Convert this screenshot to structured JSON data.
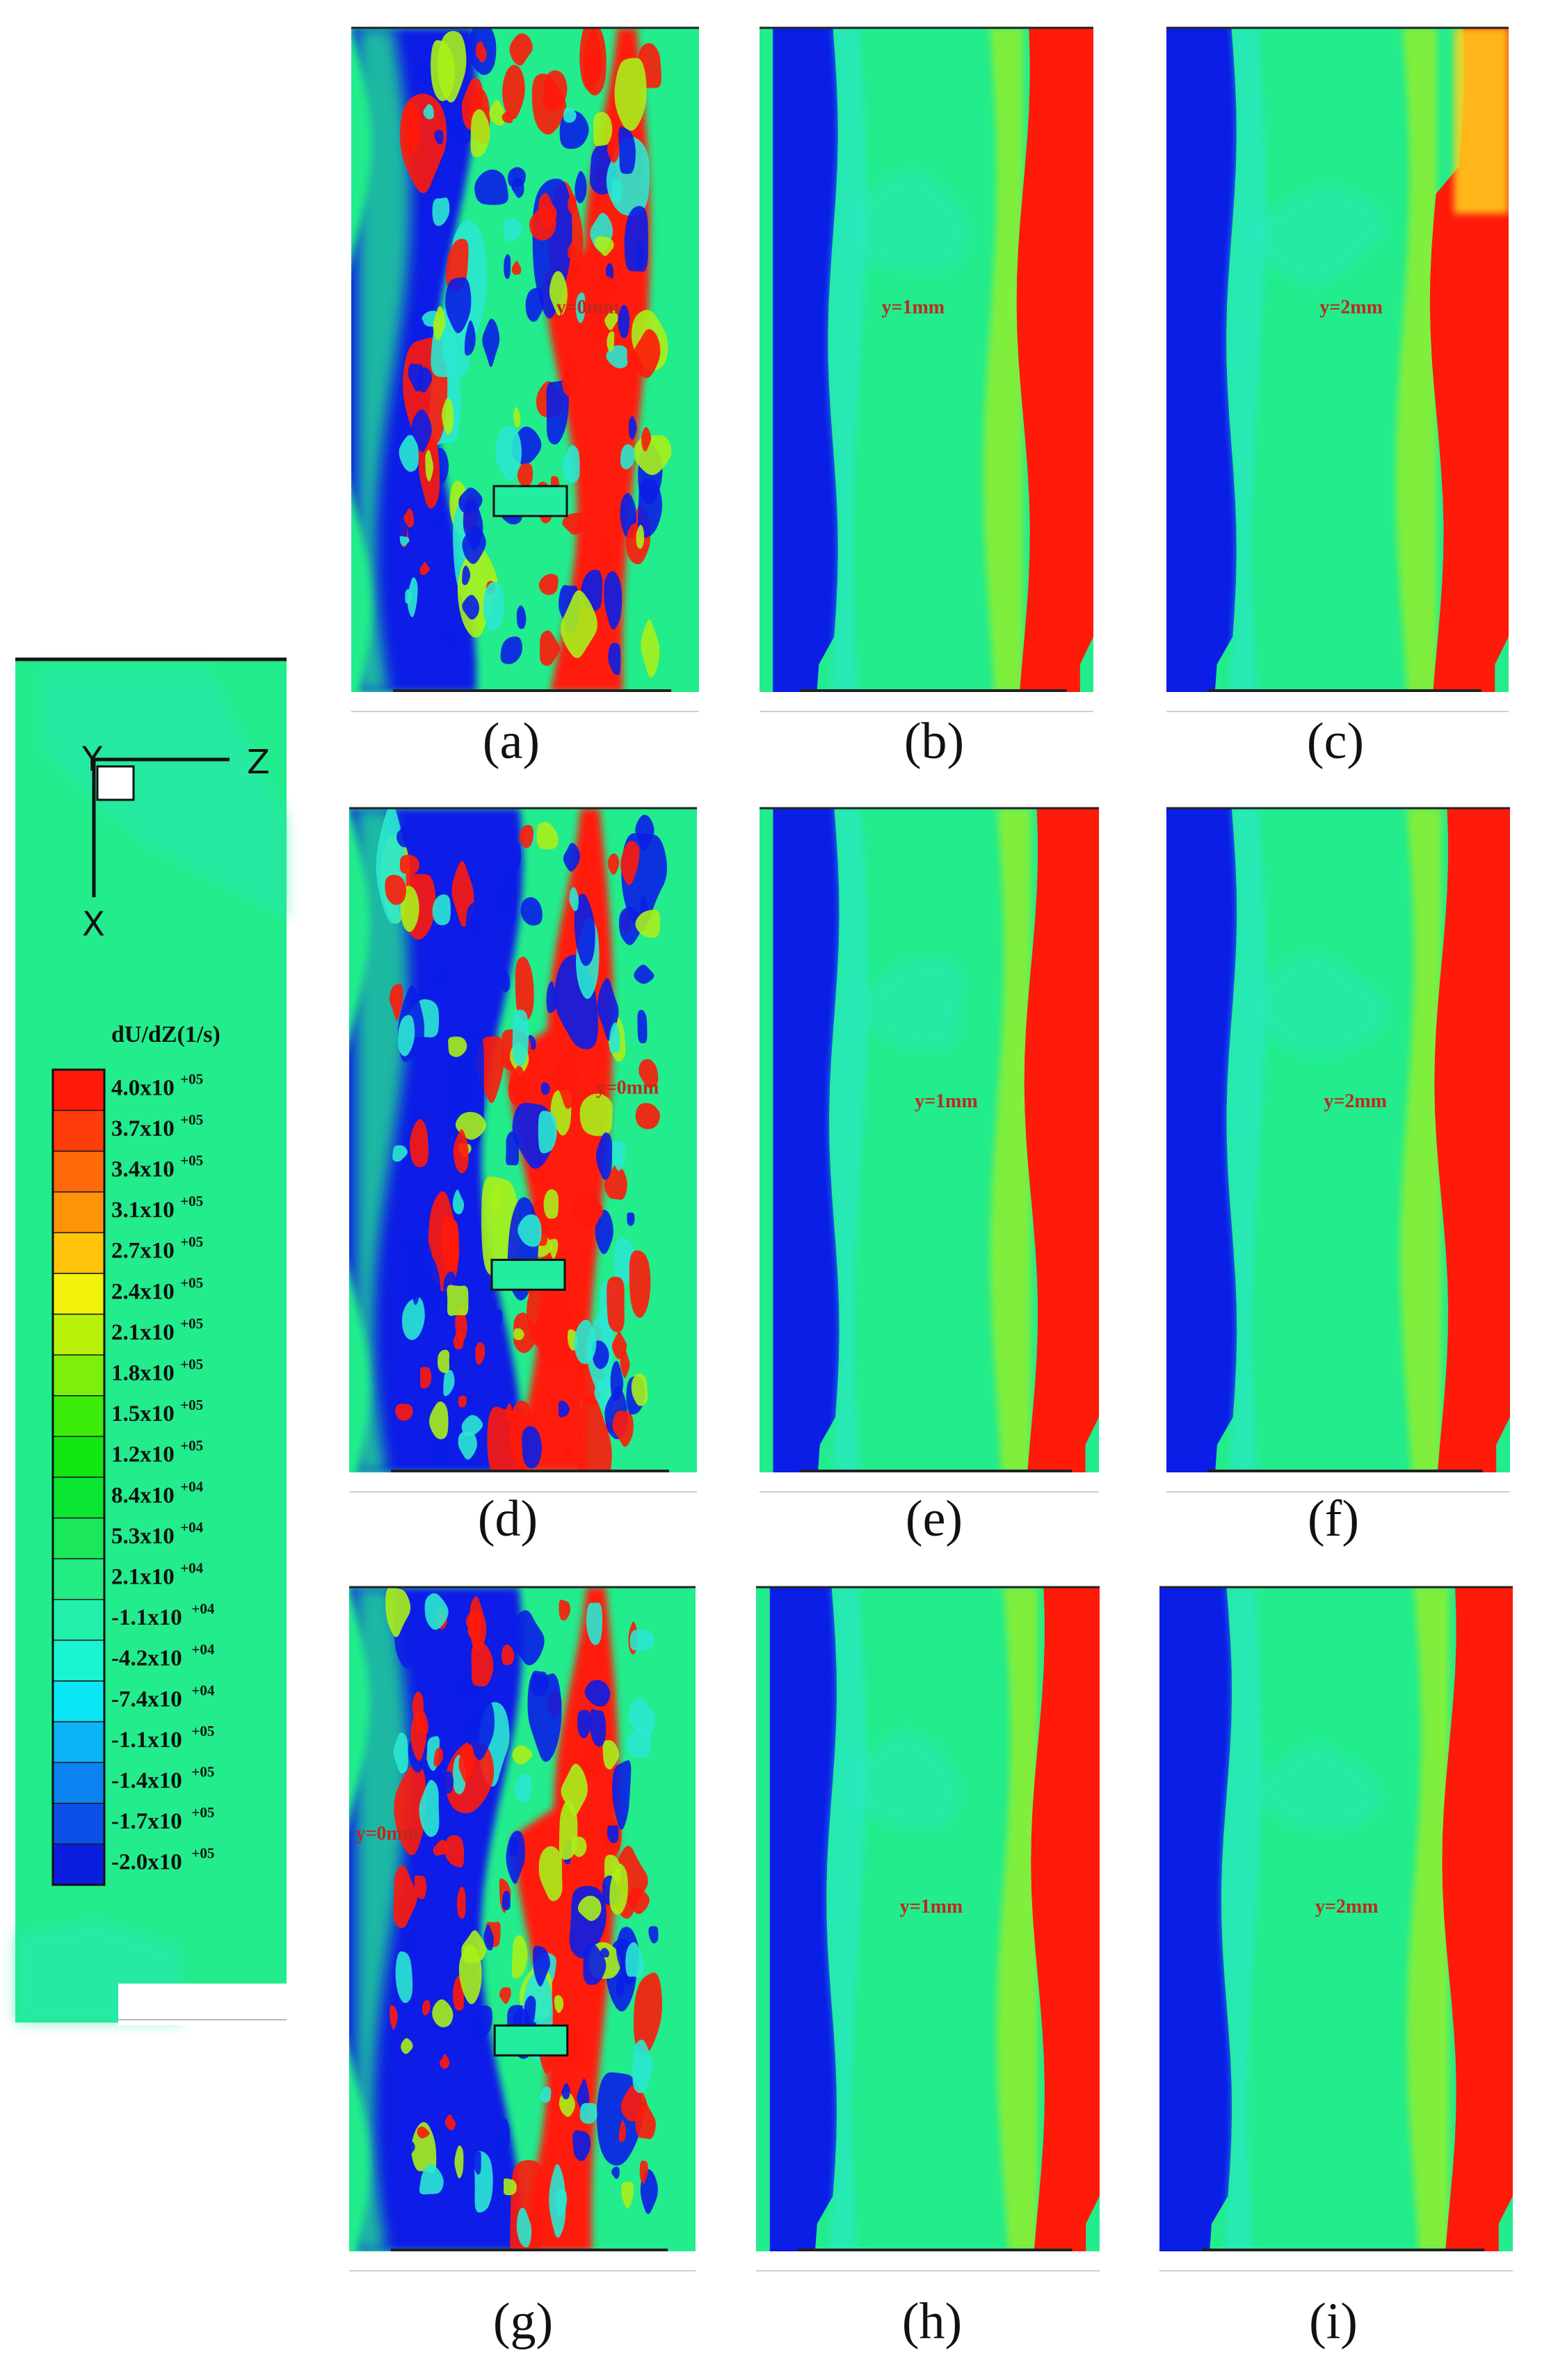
{
  "legend": {
    "title": "dU/dZ(1/s)",
    "axes": {
      "y": "Y",
      "z": "Z",
      "x": "X"
    },
    "levels": [
      {
        "label": "4.0x10",
        "exp": "+05",
        "color": "#ff1a0a"
      },
      {
        "label": "3.7x10",
        "exp": "+05",
        "color": "#ff3d0a"
      },
      {
        "label": "3.4x10",
        "exp": "+05",
        "color": "#ff6a0a"
      },
      {
        "label": "3.1x10",
        "exp": "+05",
        "color": "#ff940a"
      },
      {
        "label": "2.7x10",
        "exp": "+05",
        "color": "#ffc40a"
      },
      {
        "label": "2.4x10",
        "exp": "+05",
        "color": "#f2f20a"
      },
      {
        "label": "2.1x10",
        "exp": "+05",
        "color": "#b8f20a"
      },
      {
        "label": "1.8x10",
        "exp": "+05",
        "color": "#7cf00a"
      },
      {
        "label": "1.5x10",
        "exp": "+05",
        "color": "#3cec0a"
      },
      {
        "label": "1.2x10",
        "exp": "+05",
        "color": "#12e612"
      },
      {
        "label": "8.4x10",
        "exp": "+04",
        "color": "#0ae632"
      },
      {
        "label": "5.3x10",
        "exp": "+04",
        "color": "#1ae85a"
      },
      {
        "label": "2.1x10",
        "exp": "+04",
        "color": "#22ec82"
      },
      {
        "label": "-1.1x10",
        "exp": "+04",
        "color": "#22f0aa"
      },
      {
        "label": "-4.2x10",
        "exp": "+04",
        "color": "#1af4d2"
      },
      {
        "label": "-7.4x10",
        "exp": "+04",
        "color": "#0ae6f6"
      },
      {
        "label": "-1.1x10",
        "exp": "+05",
        "color": "#0ab4f6"
      },
      {
        "label": "-1.4x10",
        "exp": "+05",
        "color": "#0a82f0"
      },
      {
        "label": "-1.7x10",
        "exp": "+05",
        "color": "#0a50e8"
      },
      {
        "label": "-2.0x10",
        "exp": "+05",
        "color": "#0a1ee0"
      }
    ]
  },
  "panels": [
    {
      "id": "a",
      "caption": "(a)",
      "y_label": "y=0mm"
    },
    {
      "id": "b",
      "caption": "(b)",
      "y_label": "y=1mm"
    },
    {
      "id": "c",
      "caption": "(c)",
      "y_label": "y=2mm"
    },
    {
      "id": "d",
      "caption": "(d)",
      "y_label": "y=0mm"
    },
    {
      "id": "e",
      "caption": "(e)",
      "y_label": "y=1mm"
    },
    {
      "id": "f",
      "caption": "(f)",
      "y_label": "y=2mm"
    },
    {
      "id": "g",
      "caption": "(g)",
      "y_label": "y=0mm"
    },
    {
      "id": "h",
      "caption": "(h)",
      "y_label": "y=1mm"
    },
    {
      "id": "i",
      "caption": "(i)",
      "y_label": "y=2mm"
    }
  ],
  "colors": {
    "background_field": "#22ec8c",
    "high": "#ff1a0a",
    "low": "#0a1ee6",
    "cyan": "#2ae8d0",
    "yellow_green": "#a8f01a"
  }
}
